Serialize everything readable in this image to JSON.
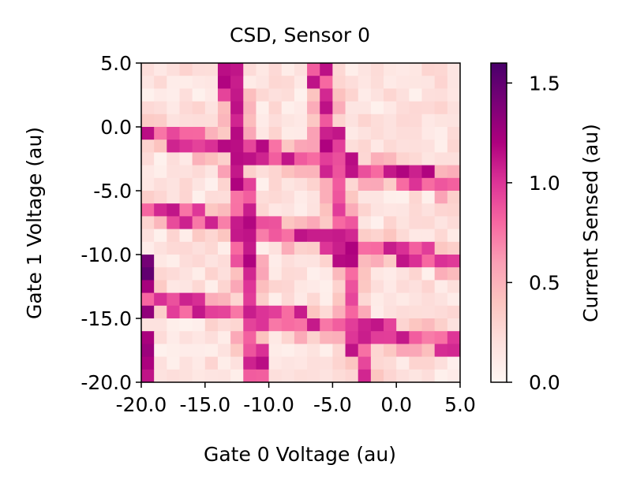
{
  "chart_data": {
    "type": "heatmap",
    "title": "CSD, Sensor 0",
    "xlabel": "Gate 0 Voltage (au)",
    "ylabel": "Gate 1 Voltage (au)",
    "xlim": [
      -20,
      5
    ],
    "ylim": [
      -20,
      5
    ],
    "x_ticks": [
      "-20.0",
      "-15.0",
      "-10.0",
      "-5.0",
      "0.0",
      "5.0"
    ],
    "y_ticks": [
      "5.0",
      "0.0",
      "-5.0",
      "-10.0",
      "-15.0",
      "-20.0"
    ],
    "grid": false,
    "colorbar": {
      "label": "Current Sensed (au)",
      "range": [
        0,
        1.6
      ],
      "ticks": [
        "0.0",
        "0.5",
        "1.0",
        "1.5"
      ],
      "colormap": "RdPu",
      "colors": [
        "#fff7f3",
        "#fde0dd",
        "#fcc5c0",
        "#fa9fb5",
        "#f768a1",
        "#dd3497",
        "#ae017e",
        "#7a0177",
        "#49006a"
      ]
    },
    "grid_size": [
      25,
      25
    ],
    "background_level": 0.05,
    "transition_lines": [
      {
        "from": [
          -13.0,
          5.0
        ],
        "to": [
          -11.0,
          -20.0
        ],
        "value": 1.0
      },
      {
        "from": [
          -6.0,
          5.0
        ],
        "to": [
          -2.5,
          -20.0
        ],
        "value": 1.0
      },
      {
        "from": [
          -20.0,
          -0.5
        ],
        "to": [
          5.0,
          -4.5
        ],
        "value": 1.0
      },
      {
        "from": [
          -20.0,
          -6.5
        ],
        "to": [
          5.0,
          -10.5
        ],
        "value": 0.95
      },
      {
        "from": [
          -20.0,
          -13.5
        ],
        "to": [
          5.0,
          -17.0
        ],
        "value": 0.95
      }
    ],
    "left_edge_peak": {
      "x": -20.0,
      "y_range": [
        -20.0,
        -10.0
      ],
      "value": 1.35
    }
  }
}
